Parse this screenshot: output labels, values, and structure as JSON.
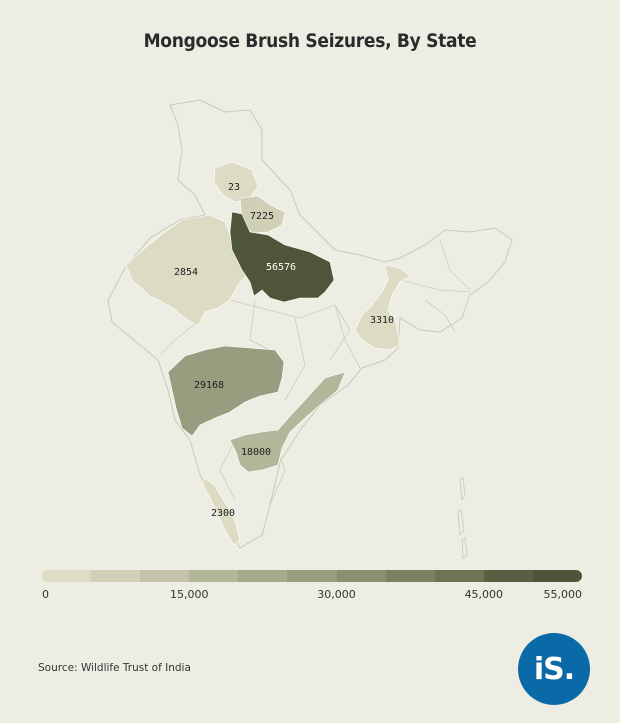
{
  "title": "Mongoose Brush Seizures, By State",
  "source": "Source: Wildlife Trust of India",
  "logo_text": "iS.",
  "colors": {
    "background": "#eeede3",
    "base_land": "#eeede3",
    "border": "#c9c8bd",
    "scale": [
      "#dcdcc5",
      "#cfd0b6",
      "#c2c3a8",
      "#b4b69a",
      "#a7a98c",
      "#999c7e",
      "#8b8e70",
      "#7d8162",
      "#6f7354",
      "#5a5f43",
      "#4e5539"
    ]
  },
  "legend": {
    "min": 0,
    "max": 55000,
    "ticks": [
      {
        "label": "0",
        "value": 0
      },
      {
        "label": "15,000",
        "value": 15000
      },
      {
        "label": "30,000",
        "value": 30000
      },
      {
        "label": "45,000",
        "value": 45000
      },
      {
        "label": "55,000",
        "value": 55000
      }
    ]
  },
  "states": [
    {
      "id": "himachal-pradesh",
      "value": "23"
    },
    {
      "id": "uttarakhand",
      "value": "7225"
    },
    {
      "id": "rajasthan",
      "value": "2854"
    },
    {
      "id": "uttar-pradesh",
      "value": "56576"
    },
    {
      "id": "west-bengal",
      "value": "3310"
    },
    {
      "id": "maharashtra",
      "value": "29168"
    },
    {
      "id": "andhra-pradesh",
      "value": "18000"
    },
    {
      "id": "kerala",
      "value": "2300"
    }
  ]
}
